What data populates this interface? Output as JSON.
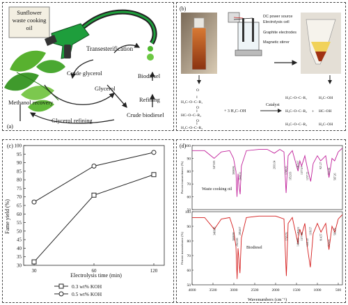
{
  "panel_a": {
    "label": "(a)",
    "oil_label": [
      "Sunflower",
      "waste cooking",
      "oil"
    ],
    "transesterification": "Transesterification",
    "crude_glycerol": "Crude glycerol",
    "glycerol": "Glycerol",
    "biodiesel": "Biodiesel",
    "refining": "Refining",
    "crude_biodiesel": "Crude biodiesel",
    "methanol_recovery": "Methanol recovery",
    "glycerol_refining": "Glycerol refining",
    "colors": {
      "leaf": "#3f9a2c",
      "pump": "#1e9e3c",
      "nozzle": "#222222"
    }
  },
  "panel_b": {
    "label": "(b)",
    "dc_power": "DC power source",
    "electrolysis_cell": "Electrolysis cell",
    "graphite": "Graphite electrodes",
    "stirrer": "Magnetic stirrer",
    "catalyst": "Catalyst",
    "methanol": "+ 3 H₃C–OH",
    "plus": "+",
    "colors": {
      "oil": "#b8541e",
      "separated": "#f1d25a"
    }
  },
  "chart_data": [
    {
      "panel": "(c)",
      "type": "line",
      "xlabel": "Electrolysis time (min)",
      "ylabel": "Fame yield (%)",
      "categories": [
        "30",
        "60",
        "120"
      ],
      "ylim": [
        30,
        100
      ],
      "yticks": [
        "30",
        "35",
        "40",
        "45",
        "50",
        "55",
        "60",
        "65",
        "70",
        "75",
        "80",
        "85",
        "90",
        "95",
        "100"
      ],
      "grid": false,
      "legend_position": "bottom",
      "series": [
        {
          "name": "0.3 wt% KOH",
          "marker": "square",
          "values": [
            32,
            71,
            83
          ]
        },
        {
          "name": "0.5 wt% KOH",
          "marker": "circle",
          "values": [
            67,
            88,
            96
          ]
        }
      ]
    },
    {
      "panel": "(d)",
      "type": "line",
      "xlabel": "Wavenumbers (cm⁻¹)",
      "ylabel": "Percent transmittance (%)",
      "xlim": [
        4000,
        400
      ],
      "xticks": [
        "4000",
        "3500",
        "3000",
        "2500",
        "2000",
        "1500",
        "1000",
        "500"
      ],
      "yticks": [
        "50",
        "60",
        "70",
        "80",
        "90",
        "100"
      ],
      "subplots": [
        {
          "name": "Waste cooking oil",
          "color": "#c0209a",
          "ylim": [
            50,
            100
          ],
          "peak_labels": [
            "3473.93",
            "3008.99",
            "2849.31",
            "2031.64",
            "1749.16",
            "1652.03",
            "1463.07",
            "1377.07",
            "1237.72",
            "921.27",
            "722.92",
            "587.26"
          ],
          "x": [
            4000,
            3700,
            3473,
            3300,
            3100,
            3008,
            2950,
            2925,
            2900,
            2880,
            2849,
            2820,
            2700,
            2400,
            2200,
            2031,
            1900,
            1800,
            1749,
            1700,
            1652,
            1600,
            1463,
            1420,
            1377,
            1300,
            1237,
            1160,
            1100,
            1000,
            921,
            800,
            722,
            650,
            587,
            500,
            400
          ],
          "y": [
            96,
            96,
            90,
            95,
            96,
            90,
            80,
            60,
            78,
            70,
            62,
            84,
            96,
            97,
            97,
            94,
            97,
            95,
            63,
            92,
            94,
            96,
            80,
            88,
            84,
            92,
            82,
            72,
            86,
            92,
            88,
            92,
            75,
            90,
            88,
            95,
            98
          ]
        },
        {
          "name": "Biodiesel",
          "color": "#d41a1a",
          "ylim": [
            50,
            100
          ],
          "peak_labels": [
            "3469.85",
            "3008.99",
            "2922.66",
            "2854.67",
            "1743.76",
            "1464.66",
            "1459.01",
            "1377.38",
            "1241.47",
            "1169.57",
            "914.57",
            "723.01",
            "583.29"
          ],
          "x": [
            4000,
            3700,
            3469,
            3300,
            3100,
            3008,
            2950,
            2922,
            2900,
            2880,
            2854,
            2820,
            2700,
            2400,
            2200,
            2000,
            1800,
            1743,
            1700,
            1600,
            1464,
            1459,
            1420,
            1377,
            1300,
            1241,
            1169,
            1100,
            1000,
            914,
            800,
            723,
            650,
            583,
            500,
            400
          ],
          "y": [
            96,
            96,
            88,
            95,
            96,
            88,
            76,
            54,
            75,
            68,
            58,
            82,
            96,
            97,
            97,
            97,
            95,
            56,
            92,
            96,
            78,
            82,
            88,
            84,
            92,
            76,
            62,
            85,
            92,
            86,
            92,
            74,
            90,
            86,
            95,
            98
          ]
        }
      ]
    }
  ]
}
